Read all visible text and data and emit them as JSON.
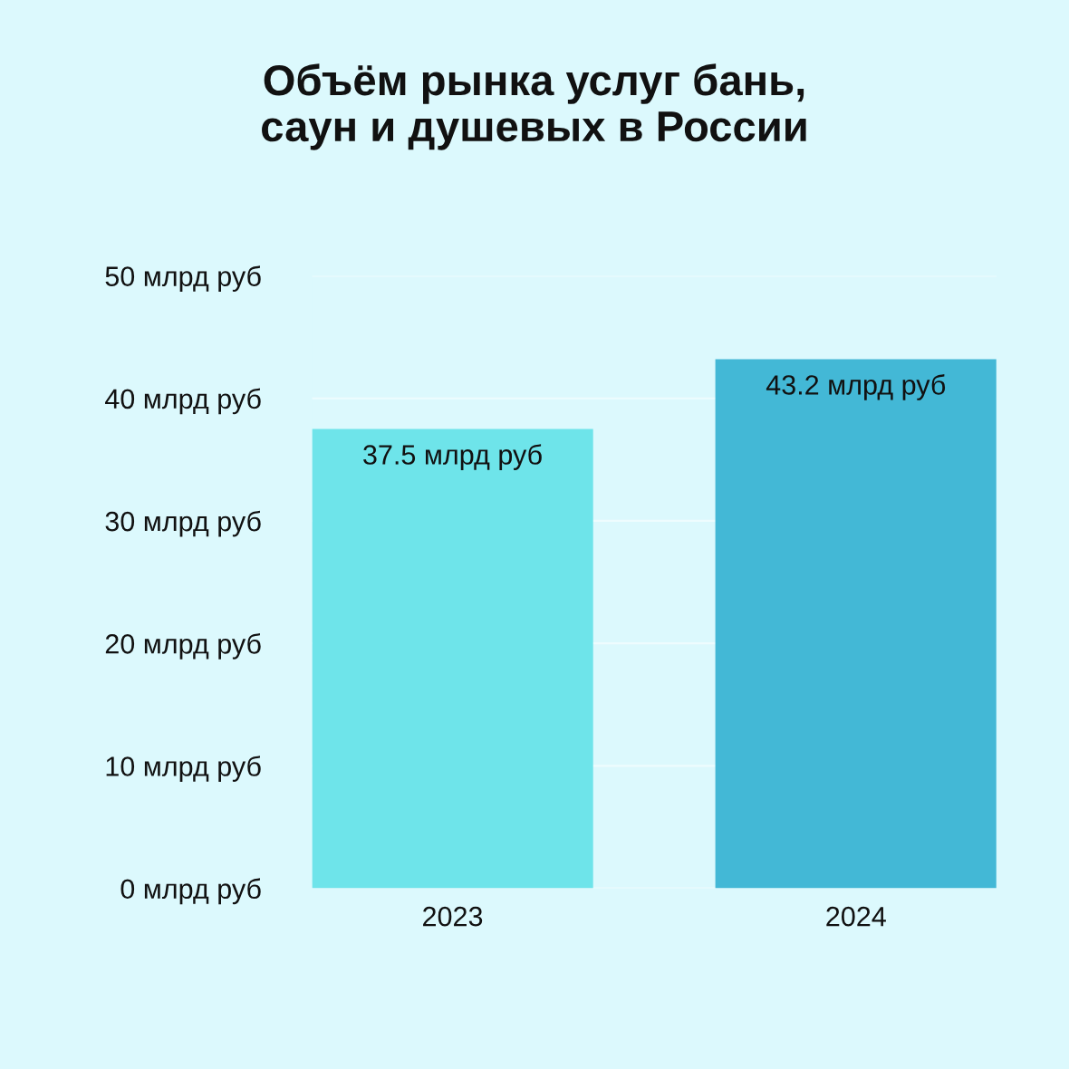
{
  "chart_data": {
    "type": "bar",
    "title": "Объём рынка услуг бань,\nсаун и душевых в России",
    "categories": [
      "2023",
      "2024"
    ],
    "values": [
      37.5,
      43.2
    ],
    "colors": [
      "#6ee4ea",
      "#43b8d6"
    ],
    "value_labels": [
      "37.5 млрд руб",
      "43.2 млрд руб"
    ],
    "ylim": [
      0,
      50
    ],
    "yticks": [
      {
        "value": 0,
        "label": "0 млрд руб"
      },
      {
        "value": 10,
        "label": "10 млрд руб"
      },
      {
        "value": 20,
        "label": "20 млрд руб"
      },
      {
        "value": 30,
        "label": "30 млрд руб"
      },
      {
        "value": 40,
        "label": "40 млрд руб"
      },
      {
        "value": 50,
        "label": "50 млрд руб"
      }
    ],
    "grid": "y",
    "legend": false
  }
}
